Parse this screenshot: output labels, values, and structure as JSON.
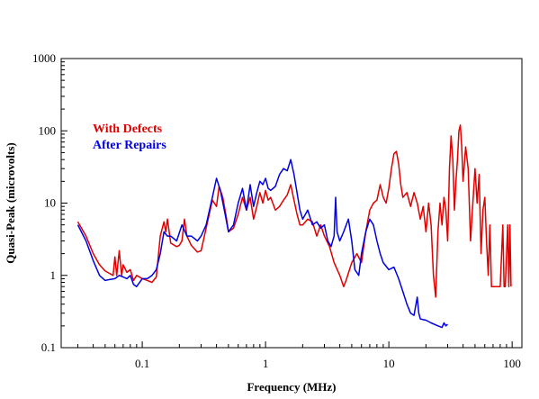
{
  "chart_data": {
    "type": "line",
    "xlabel": "Frequency (MHz)",
    "ylabel": "Quasi-Peak (microvolts)",
    "x_scale": "log",
    "y_scale": "log",
    "xlim": [
      0.022,
      120
    ],
    "ylim": [
      0.1,
      1000
    ],
    "x_ticks": [
      {
        "value": 0.1,
        "label": "0.1"
      },
      {
        "value": 1,
        "label": "1"
      },
      {
        "value": 10,
        "label": "10"
      },
      {
        "value": 100,
        "label": "100"
      }
    ],
    "y_ticks": [
      {
        "value": 0.1,
        "label": "0.1"
      },
      {
        "value": 1,
        "label": "1"
      },
      {
        "value": 10,
        "label": "10"
      },
      {
        "value": 100,
        "label": "100"
      },
      {
        "value": 1000,
        "label": "1000"
      }
    ],
    "grid": false,
    "legend_position": "top-left",
    "series": [
      {
        "name": "With Defects",
        "color": "#e00000",
        "points": [
          [
            0.03,
            5.5
          ],
          [
            0.035,
            3.5
          ],
          [
            0.04,
            2.0
          ],
          [
            0.045,
            1.4
          ],
          [
            0.05,
            1.15
          ],
          [
            0.055,
            1.05
          ],
          [
            0.058,
            1.0
          ],
          [
            0.06,
            1.8
          ],
          [
            0.062,
            1.0
          ],
          [
            0.065,
            2.2
          ],
          [
            0.068,
            1.0
          ],
          [
            0.07,
            1.4
          ],
          [
            0.075,
            1.1
          ],
          [
            0.08,
            1.2
          ],
          [
            0.085,
            0.85
          ],
          [
            0.09,
            1.0
          ],
          [
            0.1,
            0.9
          ],
          [
            0.11,
            0.85
          ],
          [
            0.12,
            0.8
          ],
          [
            0.13,
            0.95
          ],
          [
            0.14,
            3.5
          ],
          [
            0.15,
            5.5
          ],
          [
            0.155,
            4.0
          ],
          [
            0.16,
            6.0
          ],
          [
            0.17,
            2.8
          ],
          [
            0.19,
            2.5
          ],
          [
            0.2,
            2.6
          ],
          [
            0.21,
            3.0
          ],
          [
            0.22,
            6.0
          ],
          [
            0.23,
            3.5
          ],
          [
            0.25,
            2.6
          ],
          [
            0.28,
            2.1
          ],
          [
            0.3,
            2.2
          ],
          [
            0.33,
            4.5
          ],
          [
            0.37,
            11.0
          ],
          [
            0.4,
            9.0
          ],
          [
            0.42,
            17.0
          ],
          [
            0.45,
            12.0
          ],
          [
            0.48,
            6.5
          ],
          [
            0.5,
            4.0
          ],
          [
            0.55,
            4.5
          ],
          [
            0.6,
            7.0
          ],
          [
            0.65,
            12.0
          ],
          [
            0.7,
            8.0
          ],
          [
            0.75,
            12.0
          ],
          [
            0.8,
            6.0
          ],
          [
            0.85,
            9.0
          ],
          [
            0.9,
            14.0
          ],
          [
            0.95,
            10.0
          ],
          [
            1.0,
            15.0
          ],
          [
            1.05,
            11.0
          ],
          [
            1.1,
            12.0
          ],
          [
            1.2,
            8.0
          ],
          [
            1.3,
            9.0
          ],
          [
            1.4,
            11.0
          ],
          [
            1.5,
            13.0
          ],
          [
            1.6,
            18.0
          ],
          [
            1.7,
            11.0
          ],
          [
            1.8,
            7.0
          ],
          [
            1.9,
            5.0
          ],
          [
            2.0,
            5.0
          ],
          [
            2.2,
            6.0
          ],
          [
            2.4,
            5.5
          ],
          [
            2.6,
            3.5
          ],
          [
            2.8,
            5.0
          ],
          [
            3.0,
            3.5
          ],
          [
            3.3,
            2.5
          ],
          [
            3.6,
            1.5
          ],
          [
            4.0,
            1.0
          ],
          [
            4.3,
            0.7
          ],
          [
            4.5,
            0.85
          ],
          [
            5.0,
            1.5
          ],
          [
            5.5,
            2.0
          ],
          [
            6.0,
            1.5
          ],
          [
            6.5,
            4.0
          ],
          [
            7.0,
            8.0
          ],
          [
            7.5,
            10.0
          ],
          [
            8.0,
            11.0
          ],
          [
            8.5,
            18.0
          ],
          [
            9.0,
            12.0
          ],
          [
            9.5,
            10.0
          ],
          [
            10.0,
            16.0
          ],
          [
            10.5,
            30.0
          ],
          [
            11.0,
            48.0
          ],
          [
            11.5,
            52.0
          ],
          [
            12.0,
            35.0
          ],
          [
            12.5,
            18.0
          ],
          [
            13.0,
            12.0
          ],
          [
            14.0,
            14.0
          ],
          [
            15.0,
            9.0
          ],
          [
            16.0,
            14.0
          ],
          [
            17.0,
            10.0
          ],
          [
            18.0,
            6.0
          ],
          [
            19.0,
            9.0
          ],
          [
            20.0,
            4.0
          ],
          [
            21.0,
            10.0
          ],
          [
            22.0,
            5.0
          ],
          [
            23.0,
            1.0
          ],
          [
            24.0,
            0.5
          ],
          [
            25.0,
            4.0
          ],
          [
            26.0,
            10.0
          ],
          [
            27.0,
            5.0
          ],
          [
            28.0,
            12.0
          ],
          [
            29.0,
            8.0
          ],
          [
            30.0,
            3.0
          ],
          [
            31.0,
            30.0
          ],
          [
            32.0,
            85.0
          ],
          [
            33.0,
            40.0
          ],
          [
            34.0,
            8.0
          ],
          [
            35.0,
            20.0
          ],
          [
            36.0,
            40.0
          ],
          [
            37.0,
            100.0
          ],
          [
            38.0,
            120.0
          ],
          [
            39.0,
            60.0
          ],
          [
            40.0,
            20.0
          ],
          [
            42.0,
            60.0
          ],
          [
            44.0,
            30.0
          ],
          [
            46.0,
            3.0
          ],
          [
            48.0,
            10.0
          ],
          [
            50.0,
            30.0
          ],
          [
            52.0,
            10.0
          ],
          [
            54.0,
            25.0
          ],
          [
            56.0,
            2.0
          ],
          [
            58.0,
            8.0
          ],
          [
            60.0,
            12.0
          ],
          [
            62.0,
            3.0
          ],
          [
            64.0,
            1.0
          ],
          [
            66.0,
            5.0
          ],
          [
            68.0,
            0.7
          ],
          [
            70.0,
            0.7
          ],
          [
            75.0,
            0.7
          ],
          [
            80.0,
            0.7
          ],
          [
            84.0,
            5.0
          ],
          [
            86.0,
            0.7
          ],
          [
            88.0,
            0.7
          ],
          [
            92.0,
            5.0
          ],
          [
            94.0,
            0.7
          ],
          [
            96.0,
            5.0
          ],
          [
            98.0,
            0.7
          ]
        ]
      },
      {
        "name": "After Repairs",
        "color": "#0000e0",
        "points": [
          [
            0.03,
            5.0
          ],
          [
            0.035,
            3.0
          ],
          [
            0.04,
            1.6
          ],
          [
            0.045,
            1.0
          ],
          [
            0.05,
            0.85
          ],
          [
            0.055,
            0.88
          ],
          [
            0.06,
            0.9
          ],
          [
            0.065,
            1.0
          ],
          [
            0.07,
            0.95
          ],
          [
            0.075,
            0.9
          ],
          [
            0.08,
            1.0
          ],
          [
            0.085,
            0.75
          ],
          [
            0.09,
            0.7
          ],
          [
            0.1,
            0.9
          ],
          [
            0.11,
            0.9
          ],
          [
            0.12,
            1.0
          ],
          [
            0.13,
            1.2
          ],
          [
            0.14,
            2.0
          ],
          [
            0.15,
            4.0
          ],
          [
            0.16,
            3.5
          ],
          [
            0.17,
            3.5
          ],
          [
            0.19,
            3.0
          ],
          [
            0.21,
            5.0
          ],
          [
            0.23,
            3.5
          ],
          [
            0.25,
            3.5
          ],
          [
            0.28,
            3.0
          ],
          [
            0.3,
            3.5
          ],
          [
            0.33,
            5.0
          ],
          [
            0.37,
            12.0
          ],
          [
            0.4,
            22.0
          ],
          [
            0.43,
            15.0
          ],
          [
            0.47,
            7.0
          ],
          [
            0.5,
            4.0
          ],
          [
            0.55,
            5.0
          ],
          [
            0.6,
            10.0
          ],
          [
            0.65,
            16.0
          ],
          [
            0.7,
            8.0
          ],
          [
            0.75,
            18.0
          ],
          [
            0.8,
            9.0
          ],
          [
            0.85,
            14.0
          ],
          [
            0.9,
            20.0
          ],
          [
            0.95,
            18.0
          ],
          [
            1.0,
            22.0
          ],
          [
            1.05,
            16.0
          ],
          [
            1.1,
            15.0
          ],
          [
            1.2,
            17.0
          ],
          [
            1.3,
            25.0
          ],
          [
            1.4,
            30.0
          ],
          [
            1.5,
            28.0
          ],
          [
            1.6,
            40.0
          ],
          [
            1.7,
            25.0
          ],
          [
            1.8,
            14.0
          ],
          [
            1.9,
            8.0
          ],
          [
            2.0,
            6.0
          ],
          [
            2.2,
            8.0
          ],
          [
            2.4,
            5.0
          ],
          [
            2.6,
            5.5
          ],
          [
            2.8,
            4.5
          ],
          [
            3.0,
            5.0
          ],
          [
            3.2,
            3.0
          ],
          [
            3.4,
            2.5
          ],
          [
            3.6,
            3.5
          ],
          [
            3.7,
            12.0
          ],
          [
            3.8,
            4.0
          ],
          [
            4.0,
            3.0
          ],
          [
            4.3,
            4.0
          ],
          [
            4.7,
            6.0
          ],
          [
            5.0,
            3.0
          ],
          [
            5.3,
            1.2
          ],
          [
            5.7,
            1.0
          ],
          [
            6.0,
            2.0
          ],
          [
            6.5,
            4.0
          ],
          [
            7.0,
            6.0
          ],
          [
            7.5,
            5.0
          ],
          [
            8.0,
            3.0
          ],
          [
            8.5,
            2.0
          ],
          [
            9.0,
            1.5
          ],
          [
            10.0,
            1.2
          ],
          [
            11.0,
            1.3
          ],
          [
            12.0,
            0.9
          ],
          [
            13.0,
            0.6
          ],
          [
            14.0,
            0.4
          ],
          [
            15.0,
            0.3
          ],
          [
            16.0,
            0.28
          ],
          [
            17.0,
            0.5
          ],
          [
            17.5,
            0.3
          ],
          [
            18.0,
            0.25
          ],
          [
            20.0,
            0.24
          ],
          [
            22.0,
            0.22
          ],
          [
            25.0,
            0.2
          ],
          [
            27.0,
            0.19
          ],
          [
            28.0,
            0.22
          ],
          [
            29.0,
            0.2
          ],
          [
            30.0,
            0.21
          ]
        ]
      }
    ]
  }
}
